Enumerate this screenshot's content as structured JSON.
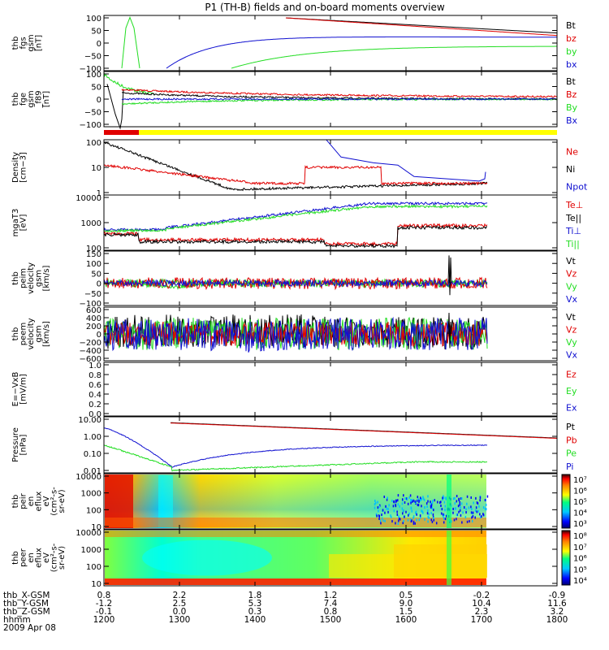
{
  "title": "P1 (TH-B) fields and on-board moments overview",
  "colors": {
    "black": "#000000",
    "red": "#e00000",
    "green": "#22dd22",
    "blue": "#1010d0",
    "yellow": "#ffff00"
  },
  "chart_data": {
    "type": "line",
    "x": [
      "1200",
      "1300",
      "1400",
      "1500",
      "1600",
      "1700",
      "1800"
    ],
    "xaxis_rows": [
      {
        "label": "thb_X-GSM",
        "values": [
          "0.8",
          "2.2",
          "1.8",
          "1.2",
          "0.5",
          "-0.2",
          "-0.9"
        ]
      },
      {
        "label": "thb_Y-GSM",
        "values": [
          "-1.2",
          "2.5",
          "5.3",
          "7.4",
          "9.0",
          "10.4",
          "11.6"
        ]
      },
      {
        "label": "thb_Z-GSM",
        "values": [
          "-0.1",
          "0.0",
          "0.3",
          "0.8",
          "1.5",
          "2.3",
          "3.2"
        ]
      },
      {
        "label": "hhmm",
        "values": [
          "1200",
          "1300",
          "1400",
          "1500",
          "1600",
          "1700",
          "1800"
        ]
      }
    ],
    "date_label": "2009 Apr 08",
    "panels": [
      {
        "key": "fgs",
        "ylabel": [
          "thb",
          "fgs",
          "gsm",
          "[nT]"
        ],
        "ytick": [
          "100",
          "50",
          "0",
          "−50",
          "−100"
        ],
        "legend": [
          {
            "name": "Bt",
            "color": "black"
          },
          {
            "name": "bz",
            "color": "red"
          },
          {
            "name": "by",
            "color": "green"
          },
          {
            "name": "bx",
            "color": "blue"
          }
        ]
      },
      {
        "key": "fge",
        "ylabel": [
          "thb",
          "fge",
          "gsm",
          "_f89",
          "[nT]"
        ],
        "ytick": [
          "100",
          "50",
          "0",
          "−50",
          "−100"
        ],
        "legend": [
          {
            "name": "Bt",
            "color": "black"
          },
          {
            "name": "Bz",
            "color": "red"
          },
          {
            "name": "By",
            "color": "green"
          },
          {
            "name": "Bx",
            "color": "blue"
          }
        ]
      },
      {
        "key": "density",
        "ylabel": [
          "Density",
          "[cm−3]"
        ],
        "ytick": [
          "100",
          "10",
          "1"
        ],
        "legend": [
          {
            "name": "Ne",
            "color": "red"
          },
          {
            "name": "Ni",
            "color": "black"
          },
          {
            "name": "Npot",
            "color": "blue"
          }
        ]
      },
      {
        "key": "temp",
        "ylabel": [
          "mgaT3",
          "[eV]"
        ],
        "ytick": [
          "10000",
          "1000",
          "100"
        ],
        "legend": [
          {
            "name": "Te⊥",
            "color": "red"
          },
          {
            "name": "Te||",
            "color": "black"
          },
          {
            "name": "Ti⊥",
            "color": "blue"
          },
          {
            "name": "Ti||",
            "color": "green"
          }
        ]
      },
      {
        "key": "peim",
        "ylabel": [
          "thb",
          "peim",
          "velocity",
          "gsm",
          "[km/s]"
        ],
        "ytick": [
          "150",
          "100",
          "50",
          "0",
          "−50",
          "−100"
        ],
        "legend": [
          {
            "name": "Vt",
            "color": "black"
          },
          {
            "name": "Vz",
            "color": "red"
          },
          {
            "name": "Vy",
            "color": "green"
          },
          {
            "name": "Vx",
            "color": "blue"
          }
        ]
      },
      {
        "key": "peem",
        "ylabel": [
          "thb",
          "peem",
          "velocity",
          "gsm",
          "[km/s]"
        ],
        "ytick": [
          "600",
          "400",
          "200",
          "0",
          "−200",
          "−400",
          "−600"
        ],
        "legend": [
          {
            "name": "Vt",
            "color": "black"
          },
          {
            "name": "Vz",
            "color": "red"
          },
          {
            "name": "Vy",
            "color": "green"
          },
          {
            "name": "Vx",
            "color": "blue"
          }
        ]
      },
      {
        "key": "efield",
        "ylabel": [
          "E=−VxB",
          "[mV/m]"
        ],
        "ytick": [
          "1.0",
          "0.8",
          "0.6",
          "0.4",
          "0.2",
          "0.0"
        ],
        "legend": [
          {
            "name": "Ez",
            "color": "red"
          },
          {
            "name": "Ey",
            "color": "green"
          },
          {
            "name": "Ex",
            "color": "blue"
          }
        ]
      },
      {
        "key": "pressure",
        "ylabel": [
          "Pressure",
          "[nPa]"
        ],
        "ytick": [
          "10.00",
          "1.00",
          "0.10",
          "0.01"
        ],
        "legend": [
          {
            "name": "Pt",
            "color": "black"
          },
          {
            "name": "Pb",
            "color": "red"
          },
          {
            "name": "Pe",
            "color": "green"
          },
          {
            "name": "Pi",
            "color": "blue"
          }
        ]
      },
      {
        "key": "peir",
        "ylabel": [
          "thb",
          "peir",
          "en",
          "eflux",
          "eV",
          "(cm²-s-",
          "sr-eV)"
        ],
        "ytick": [
          "10000",
          "1000",
          "100",
          "10"
        ],
        "cbar": [
          "10⁷",
          "10⁶",
          "10⁵",
          "10⁴",
          "10³"
        ]
      },
      {
        "key": "peer",
        "ylabel": [
          "thb",
          "peer",
          "en",
          "eflux",
          "eV",
          "(cm²-s-",
          "sr-eV)"
        ],
        "ytick": [
          "10000",
          "1000",
          "100",
          "10"
        ],
        "cbar": [
          "10⁸",
          "10⁷",
          "10⁶",
          "10⁵",
          "10⁴"
        ]
      }
    ]
  }
}
